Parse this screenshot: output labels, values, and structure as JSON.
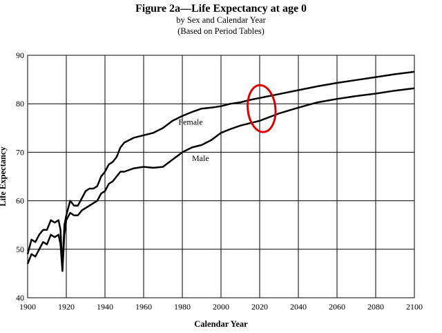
{
  "chart_data": {
    "type": "line",
    "title": "Figure 2a—Life Expectancy at age 0",
    "subtitle": "by Sex and Calendar Year",
    "subtitle2": "(Based on Period Tables)",
    "xlabel": "Calendar Year",
    "ylabel": "Life Expectancy",
    "xlim": [
      1900,
      2100
    ],
    "ylim": [
      40,
      90
    ],
    "xticks": [
      1900,
      1920,
      1940,
      1960,
      1980,
      2000,
      2020,
      2040,
      2060,
      2080,
      2100
    ],
    "yticks": [
      40,
      50,
      60,
      70,
      80,
      90
    ],
    "grid": true,
    "series": [
      {
        "name": "Female",
        "x": [
          1900,
          1902,
          1904,
          1906,
          1908,
          1910,
          1912,
          1914,
          1916,
          1917,
          1918,
          1919,
          1920,
          1922,
          1924,
          1926,
          1928,
          1930,
          1932,
          1934,
          1936,
          1938,
          1940,
          1942,
          1944,
          1946,
          1948,
          1950,
          1955,
          1960,
          1965,
          1970,
          1975,
          1980,
          1985,
          1990,
          1995,
          2000,
          2005,
          2010,
          2015,
          2020,
          2030,
          2040,
          2050,
          2060,
          2070,
          2080,
          2090,
          2100
        ],
        "values": [
          49,
          52,
          51.5,
          53,
          54,
          54,
          56,
          55.5,
          56,
          54,
          46,
          55,
          57,
          60,
          59,
          59,
          60.5,
          62,
          62.5,
          62.5,
          63,
          65,
          66,
          67.5,
          68,
          69,
          71,
          72,
          73,
          73.5,
          74,
          75,
          76.5,
          77.5,
          78.3,
          79,
          79.2,
          79.5,
          80,
          80.3,
          80.8,
          81.2,
          82,
          82.8,
          83.6,
          84.3,
          84.9,
          85.5,
          86.1,
          86.6
        ]
      },
      {
        "name": "Male",
        "x": [
          1900,
          1902,
          1904,
          1906,
          1908,
          1910,
          1912,
          1914,
          1916,
          1917,
          1918,
          1919,
          1920,
          1922,
          1924,
          1926,
          1928,
          1930,
          1932,
          1934,
          1936,
          1938,
          1940,
          1942,
          1944,
          1946,
          1948,
          1950,
          1955,
          1960,
          1965,
          1970,
          1975,
          1980,
          1985,
          1990,
          1995,
          2000,
          2005,
          2010,
          2015,
          2020,
          2030,
          2040,
          2050,
          2060,
          2070,
          2080,
          2090,
          2100
        ],
        "values": [
          47,
          49,
          48.5,
          50,
          51.5,
          51,
          53,
          52.5,
          53,
          51,
          45.5,
          53,
          56,
          57.5,
          57,
          57,
          58,
          58.5,
          59,
          59.5,
          60,
          61.5,
          62,
          63.5,
          64,
          65,
          66,
          66,
          66.7,
          67,
          66.8,
          67,
          68.5,
          70,
          71,
          71.5,
          72.5,
          74,
          74.8,
          75.5,
          76,
          76.5,
          78,
          79.2,
          80.3,
          81,
          81.6,
          82.1,
          82.7,
          83.2
        ]
      }
    ],
    "annotations": [
      "Female",
      "Male"
    ]
  },
  "highlight_color": "#e00000",
  "line_color": "#000000"
}
